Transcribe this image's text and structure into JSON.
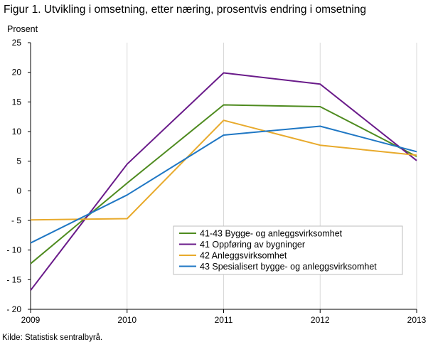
{
  "title": "Figur 1. Utvikling i omsetning, etter næring, prosentvis endring i omsetning",
  "source": "Kilde: Statistisk sentralbyrå.",
  "chart_data": {
    "type": "line",
    "ylabel": "Prosent",
    "x": [
      "2009",
      "2010",
      "2011",
      "2012",
      "2013"
    ],
    "ylim": [
      -20,
      25
    ],
    "yticks": [
      25,
      20,
      15,
      10,
      5,
      0,
      -5,
      -10,
      -15,
      -20
    ],
    "ytick_labels": [
      "25",
      "20",
      "15",
      "10",
      "5",
      "0",
      "- 5",
      "- 10",
      "- 15",
      "- 20"
    ],
    "grid": "vertical",
    "legend_position": "lower-right",
    "series": [
      {
        "name": "41-43 Bygge- og anleggsvirksomhet",
        "color": "#4e8b1f",
        "values": [
          -12.3,
          1.3,
          14.5,
          14.2,
          5.8
        ]
      },
      {
        "name": "41 Oppføring av bygninger",
        "color": "#6a1b8a",
        "values": [
          -16.8,
          4.5,
          19.9,
          18.0,
          5.1
        ]
      },
      {
        "name": "42 Anleggsvirksomhet",
        "color": "#e8aa2c",
        "values": [
          -4.9,
          -4.7,
          11.9,
          7.7,
          6.0
        ]
      },
      {
        "name": "43 Spesialisert bygge- og anleggsvirksomhet",
        "color": "#1f77c4",
        "values": [
          -8.8,
          -0.7,
          9.4,
          10.9,
          6.6
        ]
      }
    ]
  }
}
